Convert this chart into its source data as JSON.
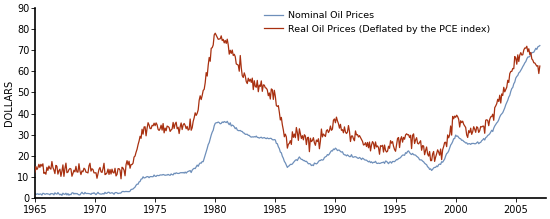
{
  "title": "",
  "ylabel": "DOLLARS",
  "xlim": [
    1965.0,
    2007.5
  ],
  "ylim": [
    0,
    90
  ],
  "yticks": [
    0,
    10,
    20,
    30,
    40,
    50,
    60,
    70,
    80,
    90
  ],
  "xticks": [
    1965,
    1970,
    1975,
    1980,
    1985,
    1990,
    1995,
    2000,
    2005
  ],
  "nominal_color": "#6e8fba",
  "real_color": "#a83010",
  "background_color": "#ffffff",
  "legend_nominal": "Nominal Oil Prices",
  "legend_real": "Real Oil Prices (Deflated by the PCE index)",
  "nominal_annual": [
    [
      1965,
      1.8
    ],
    [
      1966,
      1.9
    ],
    [
      1967,
      1.9
    ],
    [
      1968,
      1.9
    ],
    [
      1969,
      2.0
    ],
    [
      1970,
      2.1
    ],
    [
      1971,
      2.2
    ],
    [
      1972,
      2.3
    ],
    [
      1973,
      3.3
    ],
    [
      1974,
      9.5
    ],
    [
      1975,
      10.4
    ],
    [
      1976,
      11.0
    ],
    [
      1977,
      12.0
    ],
    [
      1978,
      12.5
    ],
    [
      1979,
      17.5
    ],
    [
      1980,
      35.5
    ],
    [
      1981,
      36.0
    ],
    [
      1982,
      32.0
    ],
    [
      1983,
      29.0
    ],
    [
      1984,
      28.5
    ],
    [
      1985,
      27.5
    ],
    [
      1986,
      14.5
    ],
    [
      1987,
      19.0
    ],
    [
      1988,
      15.5
    ],
    [
      1989,
      18.5
    ],
    [
      1990,
      23.5
    ],
    [
      1991,
      20.0
    ],
    [
      1992,
      19.0
    ],
    [
      1993,
      17.0
    ],
    [
      1994,
      16.5
    ],
    [
      1995,
      17.5
    ],
    [
      1996,
      22.0
    ],
    [
      1997,
      19.0
    ],
    [
      1998,
      13.0
    ],
    [
      1999,
      17.5
    ],
    [
      2000,
      30.0
    ],
    [
      2001,
      25.5
    ],
    [
      2002,
      26.0
    ],
    [
      2003,
      31.5
    ],
    [
      2004,
      41.5
    ],
    [
      2005,
      56.5
    ],
    [
      2006,
      66.5
    ],
    [
      2007,
      72.5
    ]
  ],
  "real_annual": [
    [
      1965,
      13.5
    ],
    [
      1966,
      13.5
    ],
    [
      1967,
      13.2
    ],
    [
      1968,
      13.0
    ],
    [
      1969,
      12.8
    ],
    [
      1970,
      12.8
    ],
    [
      1971,
      12.7
    ],
    [
      1972,
      12.5
    ],
    [
      1973,
      15.5
    ],
    [
      1974,
      33.5
    ],
    [
      1975,
      34.0
    ],
    [
      1976,
      33.5
    ],
    [
      1977,
      34.5
    ],
    [
      1978,
      33.0
    ],
    [
      1979,
      51.0
    ],
    [
      1980,
      78.0
    ],
    [
      1981,
      73.0
    ],
    [
      1982,
      62.0
    ],
    [
      1983,
      55.0
    ],
    [
      1984,
      53.0
    ],
    [
      1985,
      48.5
    ],
    [
      1986,
      25.5
    ],
    [
      1987,
      31.0
    ],
    [
      1988,
      25.5
    ],
    [
      1989,
      28.5
    ],
    [
      1990,
      36.0
    ],
    [
      1991,
      30.0
    ],
    [
      1992,
      28.0
    ],
    [
      1993,
      24.5
    ],
    [
      1994,
      23.5
    ],
    [
      1995,
      25.0
    ],
    [
      1996,
      30.5
    ],
    [
      1997,
      26.5
    ],
    [
      1998,
      18.0
    ],
    [
      1999,
      23.0
    ],
    [
      2000,
      38.5
    ],
    [
      2001,
      32.0
    ],
    [
      2002,
      33.0
    ],
    [
      2003,
      39.0
    ],
    [
      2004,
      50.0
    ],
    [
      2005,
      65.0
    ],
    [
      2006,
      72.0
    ],
    [
      2007,
      60.0
    ]
  ]
}
